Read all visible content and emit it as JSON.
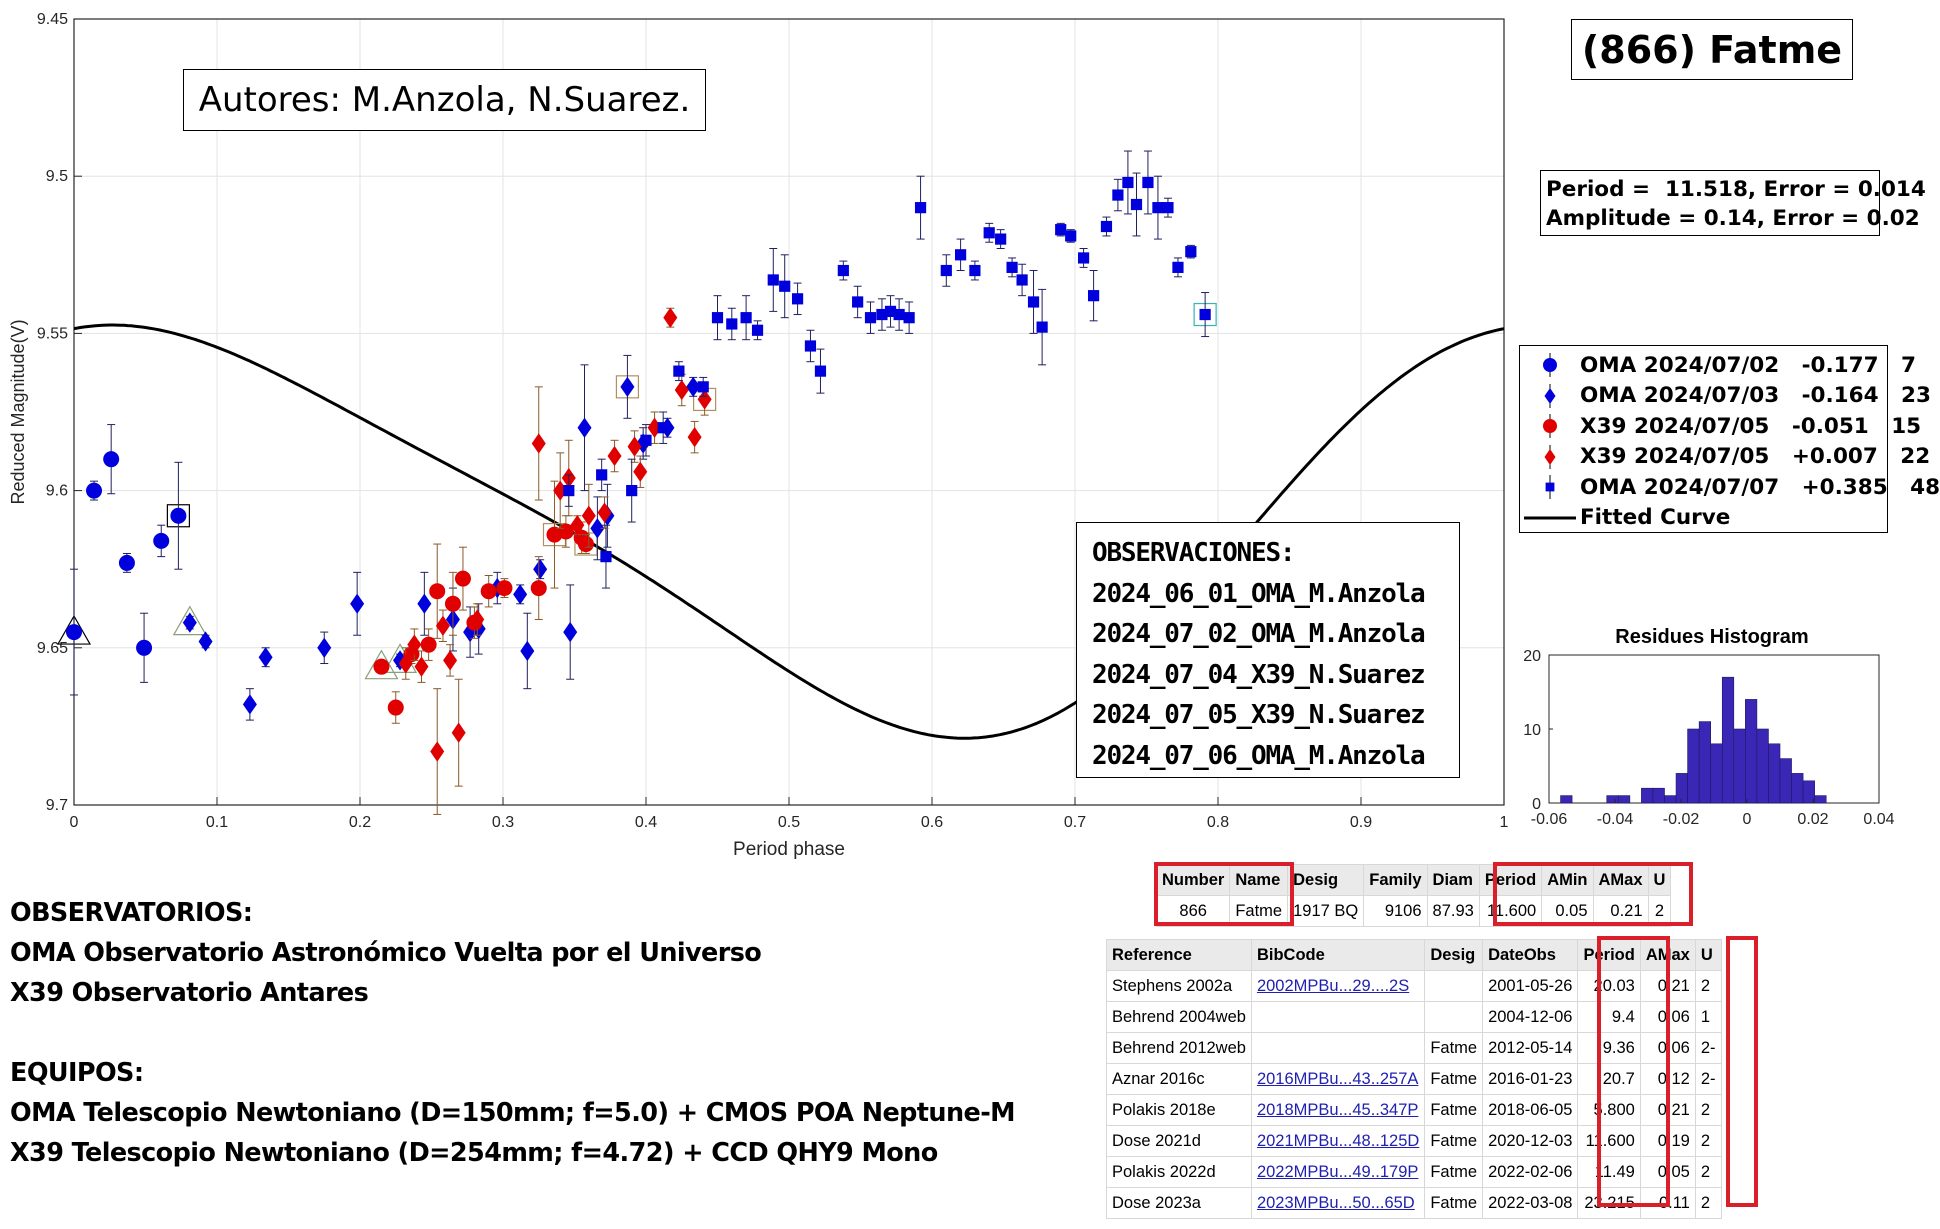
{
  "chart_data": {
    "type": "scatter",
    "title": "(866) Fatme",
    "xlabel": "Period phase",
    "ylabel": "Reduced Magnitude(V)",
    "xlim": [
      0,
      1
    ],
    "ylim": [
      9.7,
      9.45
    ],
    "y_reversed": true,
    "grid": true,
    "x_ticks": [
      "0",
      "0.1",
      "0.2",
      "0.3",
      "0.4",
      "0.5",
      "0.6",
      "0.7",
      "0.8",
      "0.9",
      "1"
    ],
    "y_ticks": [
      "9.45",
      "9.5",
      "9.55",
      "9.6",
      "9.65",
      "9.7"
    ],
    "legend_position": "right",
    "series": [
      {
        "name": "OMA 2024/07/02",
        "offset": "-0.177",
        "count": "7",
        "marker": "circle",
        "color": "#0000dd",
        "points": [
          [
            0.0,
            9.645,
            0.02
          ],
          [
            0.014,
            9.6,
            0.003
          ],
          [
            0.026,
            9.59,
            0.011
          ],
          [
            0.037,
            9.623,
            0.003
          ],
          [
            0.049,
            9.65,
            0.011
          ],
          [
            0.061,
            9.616,
            0.005
          ],
          [
            0.073,
            9.608,
            0.017
          ]
        ]
      },
      {
        "name": "OMA 2024/07/03",
        "offset": "-0.164",
        "count": "23",
        "marker": "diamond",
        "color": "#0000dd",
        "points": [
          [
            0.081,
            9.642,
            0.002
          ],
          [
            0.092,
            9.648,
            0.002
          ],
          [
            0.123,
            9.668,
            0.005
          ],
          [
            0.134,
            9.653,
            0.003
          ],
          [
            0.175,
            9.65,
            0.005
          ],
          [
            0.198,
            9.636,
            0.01
          ],
          [
            0.228,
            9.654,
            0.002
          ],
          [
            0.245,
            9.636,
            0.01
          ],
          [
            0.265,
            9.641,
            0.01
          ],
          [
            0.277,
            9.645,
            0.008
          ],
          [
            0.283,
            9.644,
            0.008
          ],
          [
            0.296,
            9.631,
            0.005
          ],
          [
            0.317,
            9.651,
            0.012
          ],
          [
            0.326,
            9.625,
            0.003
          ],
          [
            0.347,
            9.645,
            0.015
          ],
          [
            0.357,
            9.58,
            0.02
          ],
          [
            0.373,
            9.608,
            0.01
          ],
          [
            0.387,
            9.567,
            0.01
          ],
          [
            0.415,
            9.58,
            0.003
          ],
          [
            0.433,
            9.567,
            0.003
          ],
          [
            0.312,
            9.633,
            0.003
          ],
          [
            0.366,
            9.612,
            0.01
          ],
          [
            0.398,
            9.585,
            0.005
          ]
        ]
      },
      {
        "name": "X39 2024/07/05",
        "offset": "-0.051",
        "count": "15",
        "marker": "circle",
        "color": "#e00000",
        "points": [
          [
            0.215,
            9.656,
            0.002
          ],
          [
            0.225,
            9.669,
            0.005
          ],
          [
            0.236,
            9.652,
            0.003
          ],
          [
            0.254,
            9.632,
            0.015
          ],
          [
            0.265,
            9.636,
            0.01
          ],
          [
            0.272,
            9.628,
            0.01
          ],
          [
            0.28,
            9.642,
            0.005
          ],
          [
            0.29,
            9.632,
            0.005
          ],
          [
            0.301,
            9.631,
            0.003
          ],
          [
            0.325,
            9.631,
            0.01
          ],
          [
            0.336,
            9.614,
            0.017
          ],
          [
            0.344,
            9.613,
            0.005
          ],
          [
            0.355,
            9.615,
            0.005
          ],
          [
            0.358,
            9.617,
            0.003
          ],
          [
            0.248,
            9.649,
            0.005
          ]
        ]
      },
      {
        "name": "X39 2024/07/05",
        "offset": "+0.007",
        "count": "22",
        "marker": "diamond",
        "color": "#e00000",
        "points": [
          [
            0.232,
            9.655,
            0.005
          ],
          [
            0.238,
            9.649,
            0.005
          ],
          [
            0.243,
            9.656,
            0.005
          ],
          [
            0.254,
            9.683,
            0.02
          ],
          [
            0.258,
            9.643,
            0.005
          ],
          [
            0.263,
            9.654,
            0.005
          ],
          [
            0.269,
            9.677,
            0.017
          ],
          [
            0.282,
            9.641,
            0.005
          ],
          [
            0.325,
            9.585,
            0.018
          ],
          [
            0.34,
            9.6,
            0.012
          ],
          [
            0.346,
            9.596,
            0.012
          ],
          [
            0.352,
            9.611,
            0.003
          ],
          [
            0.36,
            9.608,
            0.01
          ],
          [
            0.371,
            9.607,
            0.005
          ],
          [
            0.378,
            9.589,
            0.005
          ],
          [
            0.392,
            9.586,
            0.005
          ],
          [
            0.396,
            9.594,
            0.005
          ],
          [
            0.406,
            9.58,
            0.005
          ],
          [
            0.417,
            9.545,
            0.003
          ],
          [
            0.425,
            9.568,
            0.005
          ],
          [
            0.434,
            9.583,
            0.005
          ],
          [
            0.441,
            9.571,
            0.005
          ]
        ]
      },
      {
        "name": "OMA 2024/07/07",
        "offset": "+0.385",
        "count": "48",
        "marker": "square",
        "color": "#0000dd",
        "points": [
          [
            0.346,
            9.6,
            0.005
          ],
          [
            0.369,
            9.595,
            0.005
          ],
          [
            0.372,
            9.621,
            0.01
          ],
          [
            0.39,
            9.6,
            0.01
          ],
          [
            0.4,
            9.584,
            0.005
          ],
          [
            0.412,
            9.58,
            0.005
          ],
          [
            0.423,
            9.562,
            0.003
          ],
          [
            0.44,
            9.567,
            0.003
          ],
          [
            0.45,
            9.545,
            0.007
          ],
          [
            0.46,
            9.547,
            0.005
          ],
          [
            0.47,
            9.545,
            0.007
          ],
          [
            0.478,
            9.549,
            0.003
          ],
          [
            0.489,
            9.533,
            0.01
          ],
          [
            0.497,
            9.535,
            0.01
          ],
          [
            0.506,
            9.539,
            0.005
          ],
          [
            0.515,
            9.554,
            0.005
          ],
          [
            0.522,
            9.562,
            0.007
          ],
          [
            0.538,
            9.53,
            0.003
          ],
          [
            0.548,
            9.54,
            0.005
          ],
          [
            0.557,
            9.545,
            0.005
          ],
          [
            0.565,
            9.544,
            0.005
          ],
          [
            0.571,
            9.543,
            0.005
          ],
          [
            0.577,
            9.544,
            0.005
          ],
          [
            0.584,
            9.545,
            0.005
          ],
          [
            0.592,
            9.51,
            0.01
          ],
          [
            0.61,
            9.53,
            0.005
          ],
          [
            0.62,
            9.525,
            0.005
          ],
          [
            0.63,
            9.53,
            0.003
          ],
          [
            0.64,
            9.518,
            0.003
          ],
          [
            0.648,
            9.52,
            0.003
          ],
          [
            0.656,
            9.529,
            0.003
          ],
          [
            0.663,
            9.533,
            0.005
          ],
          [
            0.671,
            9.54,
            0.01
          ],
          [
            0.677,
            9.548,
            0.012
          ],
          [
            0.69,
            9.517,
            0.002
          ],
          [
            0.697,
            9.519,
            0.002
          ],
          [
            0.706,
            9.526,
            0.003
          ],
          [
            0.713,
            9.538,
            0.008
          ],
          [
            0.722,
            9.516,
            0.003
          ],
          [
            0.73,
            9.506,
            0.005
          ],
          [
            0.737,
            9.502,
            0.01
          ],
          [
            0.743,
            9.509,
            0.01
          ],
          [
            0.751,
            9.502,
            0.01
          ],
          [
            0.758,
            9.51,
            0.01
          ],
          [
            0.765,
            9.51,
            0.003
          ],
          [
            0.772,
            9.529,
            0.003
          ],
          [
            0.781,
            9.524,
            0.002
          ],
          [
            0.791,
            9.544,
            0.007
          ]
        ]
      }
    ],
    "fitted_curve": {
      "name": "Fitted Curve",
      "mean": 9.611,
      "a1": -0.0545,
      "b1": -0.03,
      "a2": -0.008,
      "b2": 0.008,
      "period_phase": 1
    },
    "highlighted_points": [
      [
        0.0,
        9.645
      ],
      [
        0.073,
        9.608
      ],
      [
        0.081,
        9.642
      ],
      [
        0.215,
        9.656
      ],
      [
        0.228,
        9.654
      ],
      [
        0.387,
        9.567
      ],
      [
        0.441,
        9.571
      ],
      [
        0.791,
        9.544
      ],
      [
        0.336,
        9.614
      ],
      [
        0.358,
        9.617
      ]
    ],
    "histogram": {
      "title": "Residues Histogram",
      "x_ticks": [
        "-0.06",
        "-0.04",
        "-0.02",
        "0",
        "0.02",
        "0.04"
      ],
      "y_ticks": [
        "0",
        "10",
        "20"
      ],
      "xlim": [
        -0.06,
        0.04
      ],
      "ylim": [
        0,
        20
      ],
      "bin_edges_start": -0.06,
      "bin_width": 0.0035,
      "counts": [
        0,
        1,
        0,
        0,
        0,
        1,
        1,
        0,
        2,
        2,
        1,
        4,
        10,
        11,
        8,
        17,
        10,
        14,
        10,
        8,
        6,
        4,
        3,
        1
      ]
    },
    "stats_lines": [
      "Period =  11.518, Error = 0.014",
      "Amplitude = 0.14, Error = 0.02"
    ],
    "fitted_curve_label": "Fitted Curve",
    "authors": "Autores: M.Anzola, N.Suarez.",
    "observations_title": "OBSERVACIONES:",
    "observations": [
      "2024_06_01_OMA_M.Anzola",
      "2024_07_02_OMA_M.Anzola",
      "2024_07_04_X39_N.Suarez",
      "2024_07_05_X39_N.Suarez",
      "2024_07_06_OMA_M.Anzola"
    ]
  },
  "info": {
    "observatories_title": "OBSERVATORIOS:",
    "observatories": [
      "OMA Observatorio Astronómico Vuelta por el Universo",
      "X39 Observatorio Antares"
    ],
    "equipment_title": "EQUIPOS:",
    "equipment": [
      "OMA Telescopio Newtoniano (D=150mm; f=5.0) + CMOS POA Neptune-M",
      "X39 Telescopio Newtoniano (D=254mm; f=4.72) + CCD QHY9 Mono"
    ]
  },
  "lcdb_summary": {
    "headers": [
      "Number",
      "Name",
      "Desig",
      "Family",
      "Diam",
      "Period",
      "AMin",
      "AMax",
      "U"
    ],
    "row": [
      "866",
      "Fatme",
      "1917 BQ",
      "9106",
      "87.93",
      "11.600",
      "0.05",
      "0.21",
      "2"
    ]
  },
  "lcdb_refs": {
    "headers": [
      "Reference",
      "BibCode",
      "Desig",
      "DateObs",
      "Period",
      "AMax",
      "U"
    ],
    "rows": [
      [
        "Stephens 2002a",
        "2002MPBu...29....2S",
        "",
        "2001-05-26",
        "20.03",
        "0.21",
        "2"
      ],
      [
        "Behrend 2004web",
        "",
        "",
        "2004-12-06",
        "9.4",
        "0.06",
        "1"
      ],
      [
        "Behrend 2012web",
        "",
        "Fatme",
        "2012-05-14",
        "9.36",
        "0.06",
        "2-"
      ],
      [
        "Aznar 2016c",
        "2016MPBu...43..257A",
        "Fatme",
        "2016-01-23",
        "20.7",
        "0.12",
        "2-"
      ],
      [
        "Polakis 2018e",
        "2018MPBu...45..347P",
        "Fatme",
        "2018-06-05",
        "5.800",
        "0.21",
        "2"
      ],
      [
        "Dose 2021d",
        "2021MPBu...48..125D",
        "Fatme",
        "2020-12-03",
        "11.600",
        "0.19",
        "2"
      ],
      [
        "Polakis 2022d",
        "2022MPBu...49..179P",
        "Fatme",
        "2022-02-06",
        "11.49",
        "0.05",
        "2"
      ],
      [
        "Dose 2023a",
        "2023MPBu...50...65D",
        "Fatme",
        "2022-03-08",
        "23.215",
        "0.11",
        "2"
      ]
    ]
  },
  "colors": {
    "blue": "#0000dd",
    "red": "#e00000",
    "hist": "#3b27b5",
    "highlight": "#d9202a"
  }
}
